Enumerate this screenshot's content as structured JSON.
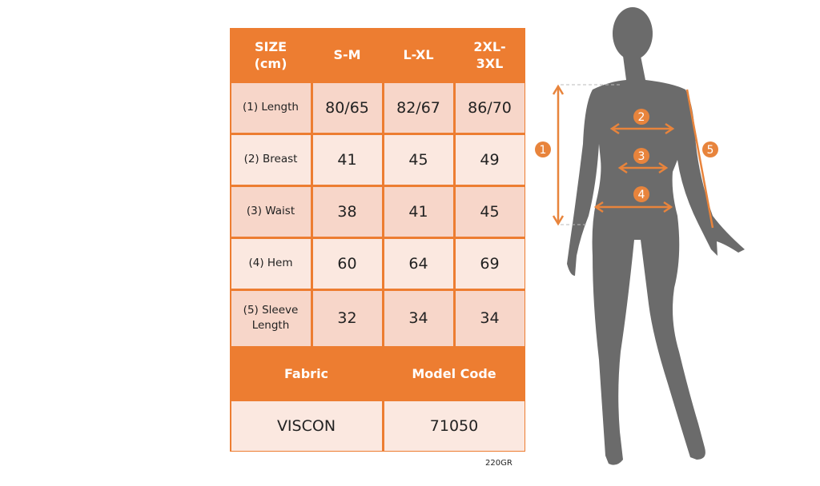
{
  "colors": {
    "accent": "#ed7d31",
    "cell_dark": "#f7d6c9",
    "cell_light": "#fbe8e0",
    "silhouette": "#6b6b6b"
  },
  "table": {
    "header": [
      "SIZE\n(cm)",
      "S-M",
      "L-XL",
      "2XL-\n3XL"
    ],
    "rows": [
      {
        "label": "(1) Length",
        "values": [
          "80/65",
          "82/67",
          "86/70"
        ]
      },
      {
        "label": "(2) Breast",
        "values": [
          "41",
          "45",
          "49"
        ]
      },
      {
        "label": "(3) Waist",
        "values": [
          "38",
          "41",
          "45"
        ]
      },
      {
        "label": "(4) Hem",
        "values": [
          "60",
          "64",
          "69"
        ]
      },
      {
        "label": "(5) Sleeve\nLength",
        "values": [
          "32",
          "34",
          "34"
        ]
      }
    ],
    "info_header": [
      "Fabric",
      "Model Code"
    ],
    "info_values": [
      "VISCON",
      "71050"
    ]
  },
  "footnote": "220GR",
  "figure": {
    "markers": [
      "1",
      "2",
      "3",
      "4",
      "5"
    ]
  }
}
